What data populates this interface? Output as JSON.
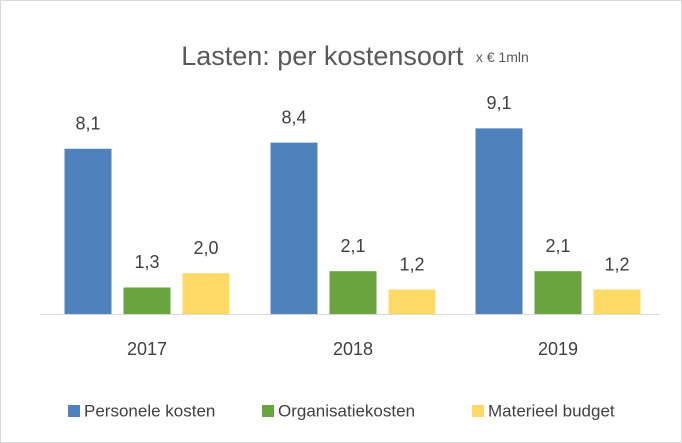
{
  "chart_data": {
    "type": "bar",
    "title": "Lasten: per kostensoort",
    "subtitle": "x € 1mln",
    "categories": [
      "2017",
      "2018",
      "2019"
    ],
    "series": [
      {
        "name": "Personele kosten",
        "color": "#4f81bd",
        "values": [
          8.1,
          8.4,
          9.1
        ],
        "value_labels": [
          "8,1",
          "8,4",
          "9,1"
        ]
      },
      {
        "name": "Organisatiekosten",
        "color": "#6aa43f",
        "values": [
          1.3,
          2.1,
          2.1
        ],
        "value_labels": [
          "1,3",
          "2,1",
          "2,1"
        ]
      },
      {
        "name": "Materieel budget",
        "color": "#ffd966",
        "values": [
          2.0,
          1.2,
          1.2
        ],
        "value_labels": [
          "2,0",
          "1,2",
          "1,2"
        ]
      }
    ],
    "legend": "bottom"
  }
}
